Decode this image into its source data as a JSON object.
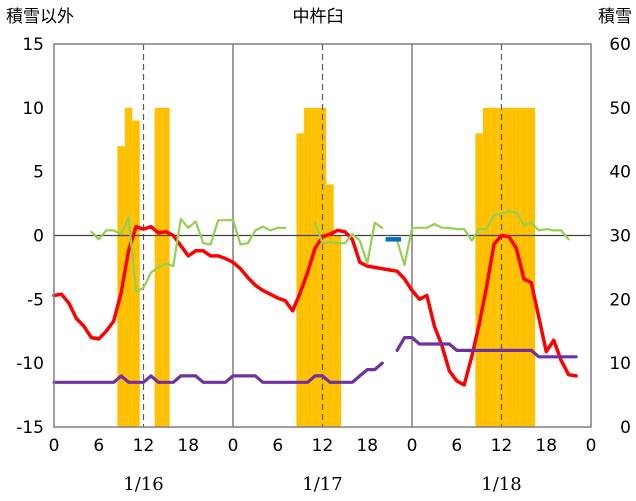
{
  "chart_data": {
    "type": "bar+line",
    "title": "中杵臼",
    "left_axis_title": "積雪以外",
    "right_axis_title": "積雪",
    "left_ylim": [
      -15,
      15
    ],
    "left_yticks": [
      15,
      10,
      5,
      0,
      -5,
      -10,
      -15
    ],
    "right_ylim": [
      0,
      60
    ],
    "right_yticks": [
      60,
      50,
      40,
      30,
      20,
      10,
      0
    ],
    "x_range_hours": [
      0,
      72
    ],
    "hour_tick_labels": [
      "0",
      "6",
      "12",
      "18",
      "0",
      "6",
      "12",
      "18",
      "0",
      "6",
      "12",
      "18",
      "0"
    ],
    "day_labels": [
      {
        "label": "1/16",
        "hour": 12
      },
      {
        "label": "1/17",
        "hour": 36
      },
      {
        "label": "1/18",
        "hour": 60
      }
    ],
    "grid": {
      "solid_vertical_hours": [
        24,
        48
      ],
      "dashed_vertical_hours": [
        12,
        36,
        60
      ],
      "zero_line": true
    },
    "colors": {
      "snow_depth": "#ffc000",
      "temperature": "#ff0000",
      "green_series": "#92d050",
      "purple_series": "#7030a0",
      "blue_series": "#0070c0"
    },
    "bars_right_axis": [
      {
        "hour": 9,
        "value": 44
      },
      {
        "hour": 10,
        "value": 50
      },
      {
        "hour": 11,
        "value": 48
      },
      {
        "hour": 14,
        "value": 50
      },
      {
        "hour": 15,
        "value": 50
      },
      {
        "hour": 33,
        "value": 46
      },
      {
        "hour": 34,
        "value": 50
      },
      {
        "hour": 35,
        "value": 50
      },
      {
        "hour": 36,
        "value": 50
      },
      {
        "hour": 37,
        "value": 38
      },
      {
        "hour": 38,
        "value": 30
      },
      {
        "hour": 57,
        "value": 46
      },
      {
        "hour": 58,
        "value": 50
      },
      {
        "hour": 59,
        "value": 50
      },
      {
        "hour": 60,
        "value": 50
      },
      {
        "hour": 61,
        "value": 50
      },
      {
        "hour": 62,
        "value": 50
      },
      {
        "hour": 63,
        "value": 50
      },
      {
        "hour": 64,
        "value": 50
      }
    ],
    "series": [
      {
        "color": "red",
        "points": [
          [
            0,
            -4.7
          ],
          [
            1,
            -4.6
          ],
          [
            2,
            -5.3
          ],
          [
            3,
            -6.5
          ],
          [
            4,
            -7.1
          ],
          [
            5,
            -8.0
          ],
          [
            6,
            -8.1
          ],
          [
            7,
            -7.5
          ],
          [
            8,
            -6.7
          ],
          [
            9,
            -4.5
          ],
          [
            10,
            -1.2
          ],
          [
            11,
            0.7
          ],
          [
            12,
            0.5
          ],
          [
            13,
            0.7
          ],
          [
            14,
            0.2
          ],
          [
            15,
            0.3
          ],
          [
            16,
            0.0
          ],
          [
            17,
            -0.8
          ],
          [
            18,
            -1.6
          ],
          [
            19,
            -1.2
          ],
          [
            20,
            -1.2
          ],
          [
            21,
            -1.6
          ],
          [
            22,
            -1.6
          ],
          [
            23,
            -1.8
          ],
          [
            24,
            -2.1
          ],
          [
            25,
            -2.6
          ],
          [
            26,
            -3.3
          ],
          [
            27,
            -3.9
          ],
          [
            28,
            -4.3
          ],
          [
            29,
            -4.6
          ],
          [
            30,
            -4.9
          ],
          [
            31,
            -5.1
          ],
          [
            32,
            -5.9
          ],
          [
            33,
            -4.5
          ],
          [
            34,
            -2.9
          ],
          [
            35,
            -1.0
          ],
          [
            36,
            -0.1
          ],
          [
            37,
            0.1
          ],
          [
            38,
            0.4
          ],
          [
            39,
            0.3
          ],
          [
            40,
            -0.3
          ],
          [
            41,
            -2.1
          ],
          [
            42,
            -2.4
          ],
          [
            43,
            -2.5
          ],
          [
            44,
            -2.6
          ],
          [
            45,
            -2.7
          ],
          [
            46,
            -2.8
          ],
          [
            47,
            -3.4
          ],
          [
            48,
            -4.3
          ],
          [
            49,
            -5.0
          ],
          [
            50,
            -4.7
          ],
          [
            51,
            -7.1
          ],
          [
            52,
            -8.6
          ],
          [
            53,
            -10.6
          ],
          [
            54,
            -11.4
          ],
          [
            55,
            -11.7
          ],
          [
            56,
            -9.5
          ],
          [
            57,
            -7.0
          ],
          [
            58,
            -4.0
          ],
          [
            59,
            -0.7
          ],
          [
            60,
            0.0
          ],
          [
            61,
            -0.1
          ],
          [
            62,
            -1.0
          ],
          [
            63,
            -3.4
          ],
          [
            64,
            -3.7
          ],
          [
            65,
            -6.4
          ],
          [
            66,
            -9.1
          ],
          [
            67,
            -8.2
          ],
          [
            68,
            -9.8
          ],
          [
            69,
            -10.9
          ],
          [
            70,
            -11.0
          ]
        ]
      },
      {
        "color": "green",
        "points": [
          [
            5,
            0.3
          ],
          [
            6,
            -0.3
          ],
          [
            7,
            0.4
          ],
          [
            8,
            0.4
          ],
          [
            9,
            0.1
          ],
          [
            10,
            1.4
          ],
          [
            11,
            -4.4
          ],
          [
            12,
            -4.1
          ],
          [
            13,
            -2.9
          ],
          [
            14,
            -2.5
          ],
          [
            15,
            -2.2
          ],
          [
            16,
            -2.4
          ],
          [
            17,
            1.3
          ],
          [
            18,
            0.6
          ],
          [
            19,
            1.1
          ],
          [
            20,
            -0.6
          ],
          [
            21,
            -0.7
          ],
          [
            22,
            1.2
          ],
          [
            23,
            1.2
          ],
          [
            24,
            1.2
          ],
          [
            25,
            -0.7
          ],
          [
            26,
            -0.6
          ],
          [
            27,
            0.4
          ],
          [
            28,
            0.7
          ],
          [
            29,
            0.4
          ],
          [
            30,
            0.6
          ],
          [
            31,
            0.6
          ],
          [
            null,
            null
          ],
          [
            35,
            1.0
          ],
          [
            36,
            -0.6
          ],
          [
            37,
            -0.5
          ],
          [
            38,
            -0.6
          ],
          [
            39,
            -0.6
          ],
          [
            40,
            0.1
          ],
          [
            41,
            -0.4
          ],
          [
            42,
            -2.2
          ],
          [
            43,
            1.0
          ],
          [
            44,
            0.6
          ],
          [
            null,
            null
          ],
          [
            46,
            -0.4
          ],
          [
            47,
            -2.3
          ],
          [
            48,
            0.6
          ],
          [
            49,
            0.6
          ],
          [
            50,
            0.6
          ],
          [
            51,
            0.9
          ],
          [
            52,
            0.6
          ],
          [
            53,
            0.6
          ],
          [
            54,
            0.5
          ],
          [
            55,
            0.5
          ],
          [
            56,
            -0.4
          ],
          [
            57,
            0.5
          ],
          [
            58,
            0.5
          ],
          [
            59,
            1.6
          ],
          [
            60,
            1.7
          ],
          [
            61,
            1.9
          ],
          [
            62,
            1.8
          ],
          [
            63,
            0.8
          ],
          [
            64,
            1.0
          ],
          [
            65,
            0.4
          ],
          [
            66,
            0.5
          ],
          [
            67,
            0.4
          ],
          [
            68,
            0.4
          ],
          [
            69,
            -0.3
          ]
        ]
      },
      {
        "color": "purple",
        "points": [
          [
            0,
            -11.5
          ],
          [
            1,
            -11.5
          ],
          [
            2,
            -11.5
          ],
          [
            3,
            -11.5
          ],
          [
            4,
            -11.5
          ],
          [
            5,
            -11.5
          ],
          [
            6,
            -11.5
          ],
          [
            7,
            -11.5
          ],
          [
            8,
            -11.5
          ],
          [
            9,
            -11.0
          ],
          [
            10,
            -11.5
          ],
          [
            11,
            -11.5
          ],
          [
            12,
            -11.5
          ],
          [
            13,
            -11.0
          ],
          [
            14,
            -11.5
          ],
          [
            15,
            -11.5
          ],
          [
            16,
            -11.5
          ],
          [
            17,
            -11.0
          ],
          [
            18,
            -11.0
          ],
          [
            19,
            -11.0
          ],
          [
            20,
            -11.5
          ],
          [
            21,
            -11.5
          ],
          [
            22,
            -11.5
          ],
          [
            23,
            -11.5
          ],
          [
            24,
            -11.0
          ],
          [
            25,
            -11.0
          ],
          [
            26,
            -11.0
          ],
          [
            27,
            -11.0
          ],
          [
            28,
            -11.5
          ],
          [
            29,
            -11.5
          ],
          [
            30,
            -11.5
          ],
          [
            31,
            -11.5
          ],
          [
            32,
            -11.5
          ],
          [
            33,
            -11.5
          ],
          [
            34,
            -11.5
          ],
          [
            35,
            -11.0
          ],
          [
            36,
            -11.0
          ],
          [
            37,
            -11.5
          ],
          [
            38,
            -11.5
          ],
          [
            39,
            -11.5
          ],
          [
            40,
            -11.5
          ],
          [
            41,
            -11.0
          ],
          [
            42,
            -10.5
          ],
          [
            43,
            -10.5
          ],
          [
            44,
            -10.0
          ],
          [
            null,
            null
          ],
          [
            46,
            -9.0
          ],
          [
            47,
            -8.0
          ],
          [
            48,
            -8.0
          ],
          [
            49,
            -8.5
          ],
          [
            50,
            -8.5
          ],
          [
            51,
            -8.5
          ],
          [
            52,
            -8.5
          ],
          [
            53,
            -8.5
          ],
          [
            54,
            -9.0
          ],
          [
            55,
            -9.0
          ],
          [
            56,
            -9.0
          ],
          [
            57,
            -9.0
          ],
          [
            58,
            -9.0
          ],
          [
            59,
            -9.0
          ],
          [
            60,
            -9.0
          ],
          [
            61,
            -9.0
          ],
          [
            62,
            -9.0
          ],
          [
            63,
            -9.0
          ],
          [
            64,
            -9.0
          ],
          [
            65,
            -9.5
          ],
          [
            66,
            -9.5
          ],
          [
            67,
            -9.5
          ],
          [
            68,
            -9.5
          ],
          [
            69,
            -9.5
          ],
          [
            70,
            -9.5
          ]
        ]
      },
      {
        "color": "blue",
        "points": [
          [
            45,
            -0.3
          ],
          [
            46,
            -0.3
          ]
        ]
      }
    ]
  }
}
